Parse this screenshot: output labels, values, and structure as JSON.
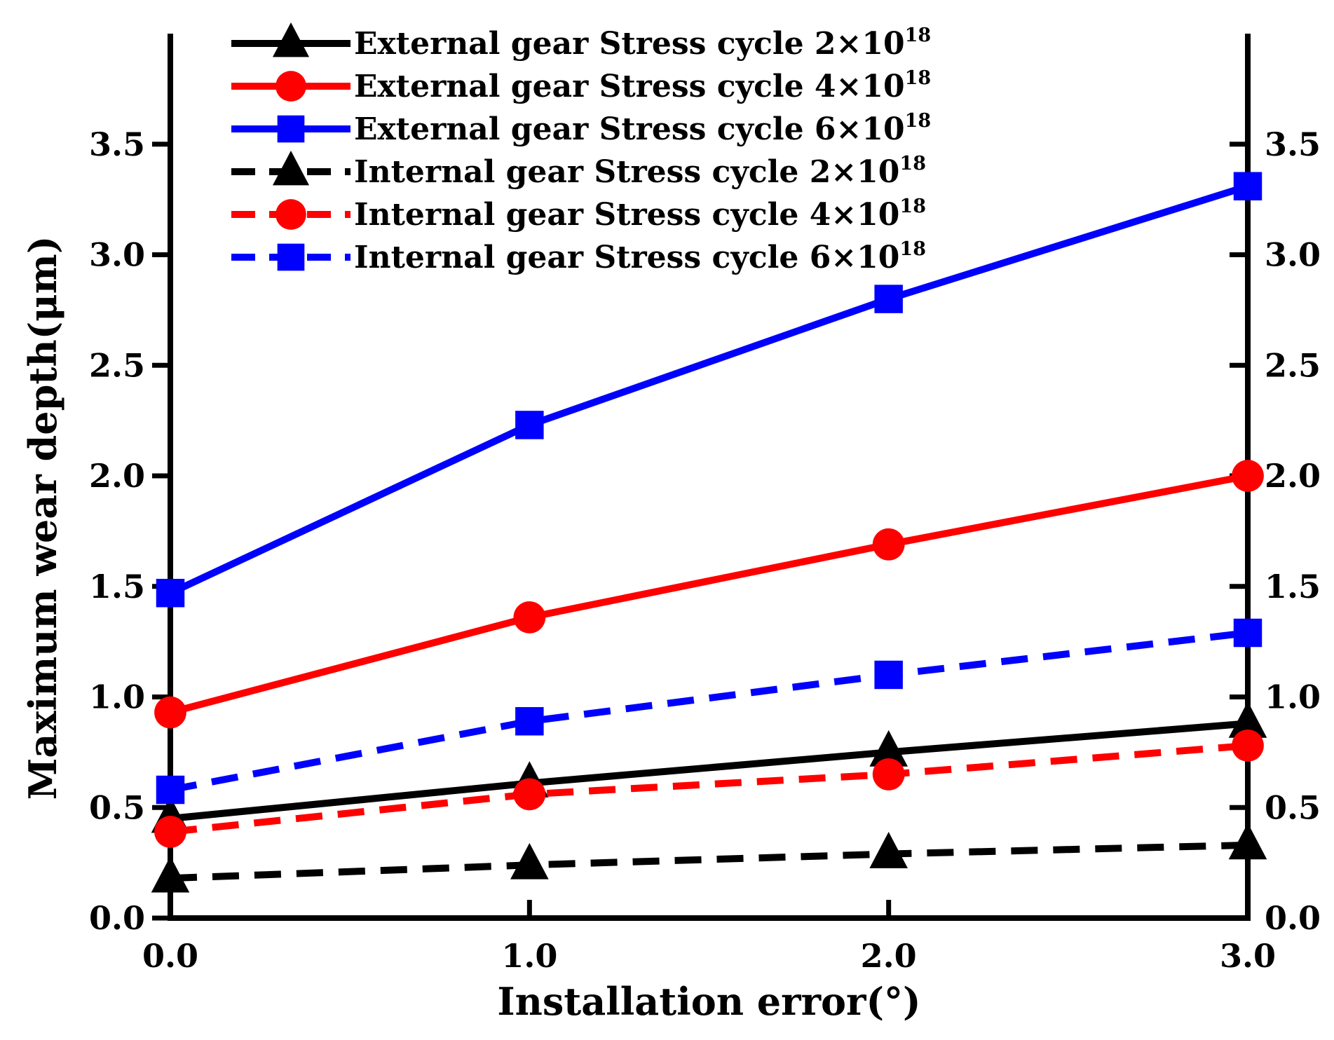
{
  "chart_data": {
    "type": "line",
    "xlabel": "Installation error(°)",
    "ylabel": "Maximum wear depth(μm)",
    "xlim": [
      0,
      3
    ],
    "ylim": [
      0,
      4.0
    ],
    "x_ticks": [
      "0.0",
      "1.0",
      "2.0",
      "3.0"
    ],
    "y_ticks": [
      "0.0",
      "0.5",
      "1.0",
      "1.5",
      "2.0",
      "2.5",
      "3.0",
      "3.5"
    ],
    "y_ticks_right": [
      "0.0",
      "0.5",
      "1.0",
      "1.5",
      "2.0",
      "2.5",
      "3.0",
      "3.5"
    ],
    "legend_position": "top",
    "x": [
      0,
      1,
      2,
      3
    ],
    "series": [
      {
        "name": "External gear Stress cycle 2×10",
        "exp": "18",
        "values": [
          0.45,
          0.61,
          0.75,
          0.88
        ],
        "color": "#000000",
        "dash": "solid",
        "marker": "triangle"
      },
      {
        "name": "External gear Stress cycle 4×10",
        "exp": "18",
        "values": [
          0.93,
          1.36,
          1.69,
          2.0
        ],
        "color": "#ff0000",
        "dash": "solid",
        "marker": "circle"
      },
      {
        "name": "External gear Stress cycle 6×10",
        "exp": "18",
        "values": [
          1.47,
          2.23,
          2.8,
          3.31
        ],
        "color": "#0000ff",
        "dash": "solid",
        "marker": "square"
      },
      {
        "name": "Internal gear Stress cycle 2×10",
        "exp": "18",
        "values": [
          0.18,
          0.24,
          0.29,
          0.33
        ],
        "color": "#000000",
        "dash": "dashed",
        "marker": "triangle"
      },
      {
        "name": "Internal gear Stress cycle 4×10",
        "exp": "18",
        "values": [
          0.39,
          0.56,
          0.65,
          0.78
        ],
        "color": "#ff0000",
        "dash": "dashed",
        "marker": "circle"
      },
      {
        "name": "Internal gear Stress cycle 6×10",
        "exp": "18",
        "values": [
          0.58,
          0.89,
          1.1,
          1.29
        ],
        "color": "#0000ff",
        "dash": "dashed",
        "marker": "square"
      }
    ]
  }
}
